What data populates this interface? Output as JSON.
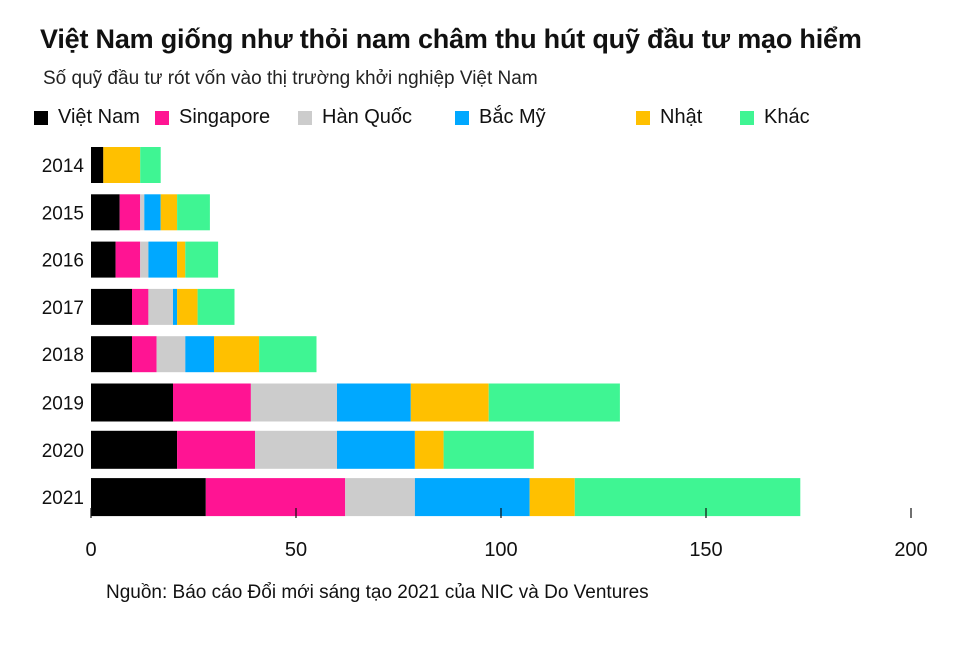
{
  "title": "Việt Nam giống như thỏi nam châm thu hút quỹ đầu tư mạo hiểm",
  "subtitle": "Số quỹ đầu tư rót vốn vào thị trường khởi nghiệp Việt Nam",
  "source": "Nguồn: Báo cáo Đổi mới sáng tạo 2021 của  NIC và Do Ventures",
  "colors": {
    "Việt Nam": "#000000",
    "Singapore": "#ff1493",
    "Hàn Quốc": "#cccccc",
    "Bắc Mỹ": "#00a8ff",
    "Nhật": "#ffc000",
    "Khác": "#3ff593"
  },
  "chart_data": {
    "type": "bar",
    "orientation": "horizontal",
    "stacked": true,
    "title": "Việt Nam giống như thỏi nam châm thu hút quỹ đầu tư mạo hiểm",
    "subtitle": "Số quỹ đầu tư rót vốn vào thị trường khởi nghiệp Việt Nam",
    "categories": [
      "2014",
      "2015",
      "2016",
      "2017",
      "2018",
      "2019",
      "2020",
      "2021"
    ],
    "series": [
      {
        "name": "Việt Nam",
        "values": [
          3,
          7,
          6,
          10,
          10,
          20,
          21,
          28
        ]
      },
      {
        "name": "Singapore",
        "values": [
          0,
          5,
          6,
          4,
          6,
          19,
          19,
          34
        ]
      },
      {
        "name": "Hàn Quốc",
        "values": [
          0,
          1,
          2,
          6,
          7,
          21,
          20,
          17
        ]
      },
      {
        "name": "Bắc Mỹ",
        "values": [
          0,
          4,
          7,
          1,
          7,
          18,
          19,
          28
        ]
      },
      {
        "name": "Nhật",
        "values": [
          9,
          4,
          2,
          5,
          11,
          19,
          7,
          11
        ]
      },
      {
        "name": "Khác",
        "values": [
          5,
          8,
          8,
          9,
          14,
          32,
          22,
          55
        ]
      }
    ],
    "xlim": [
      0,
      200
    ],
    "xticks": [
      0,
      50,
      100,
      150,
      200
    ],
    "grid": false,
    "legend": "top"
  }
}
